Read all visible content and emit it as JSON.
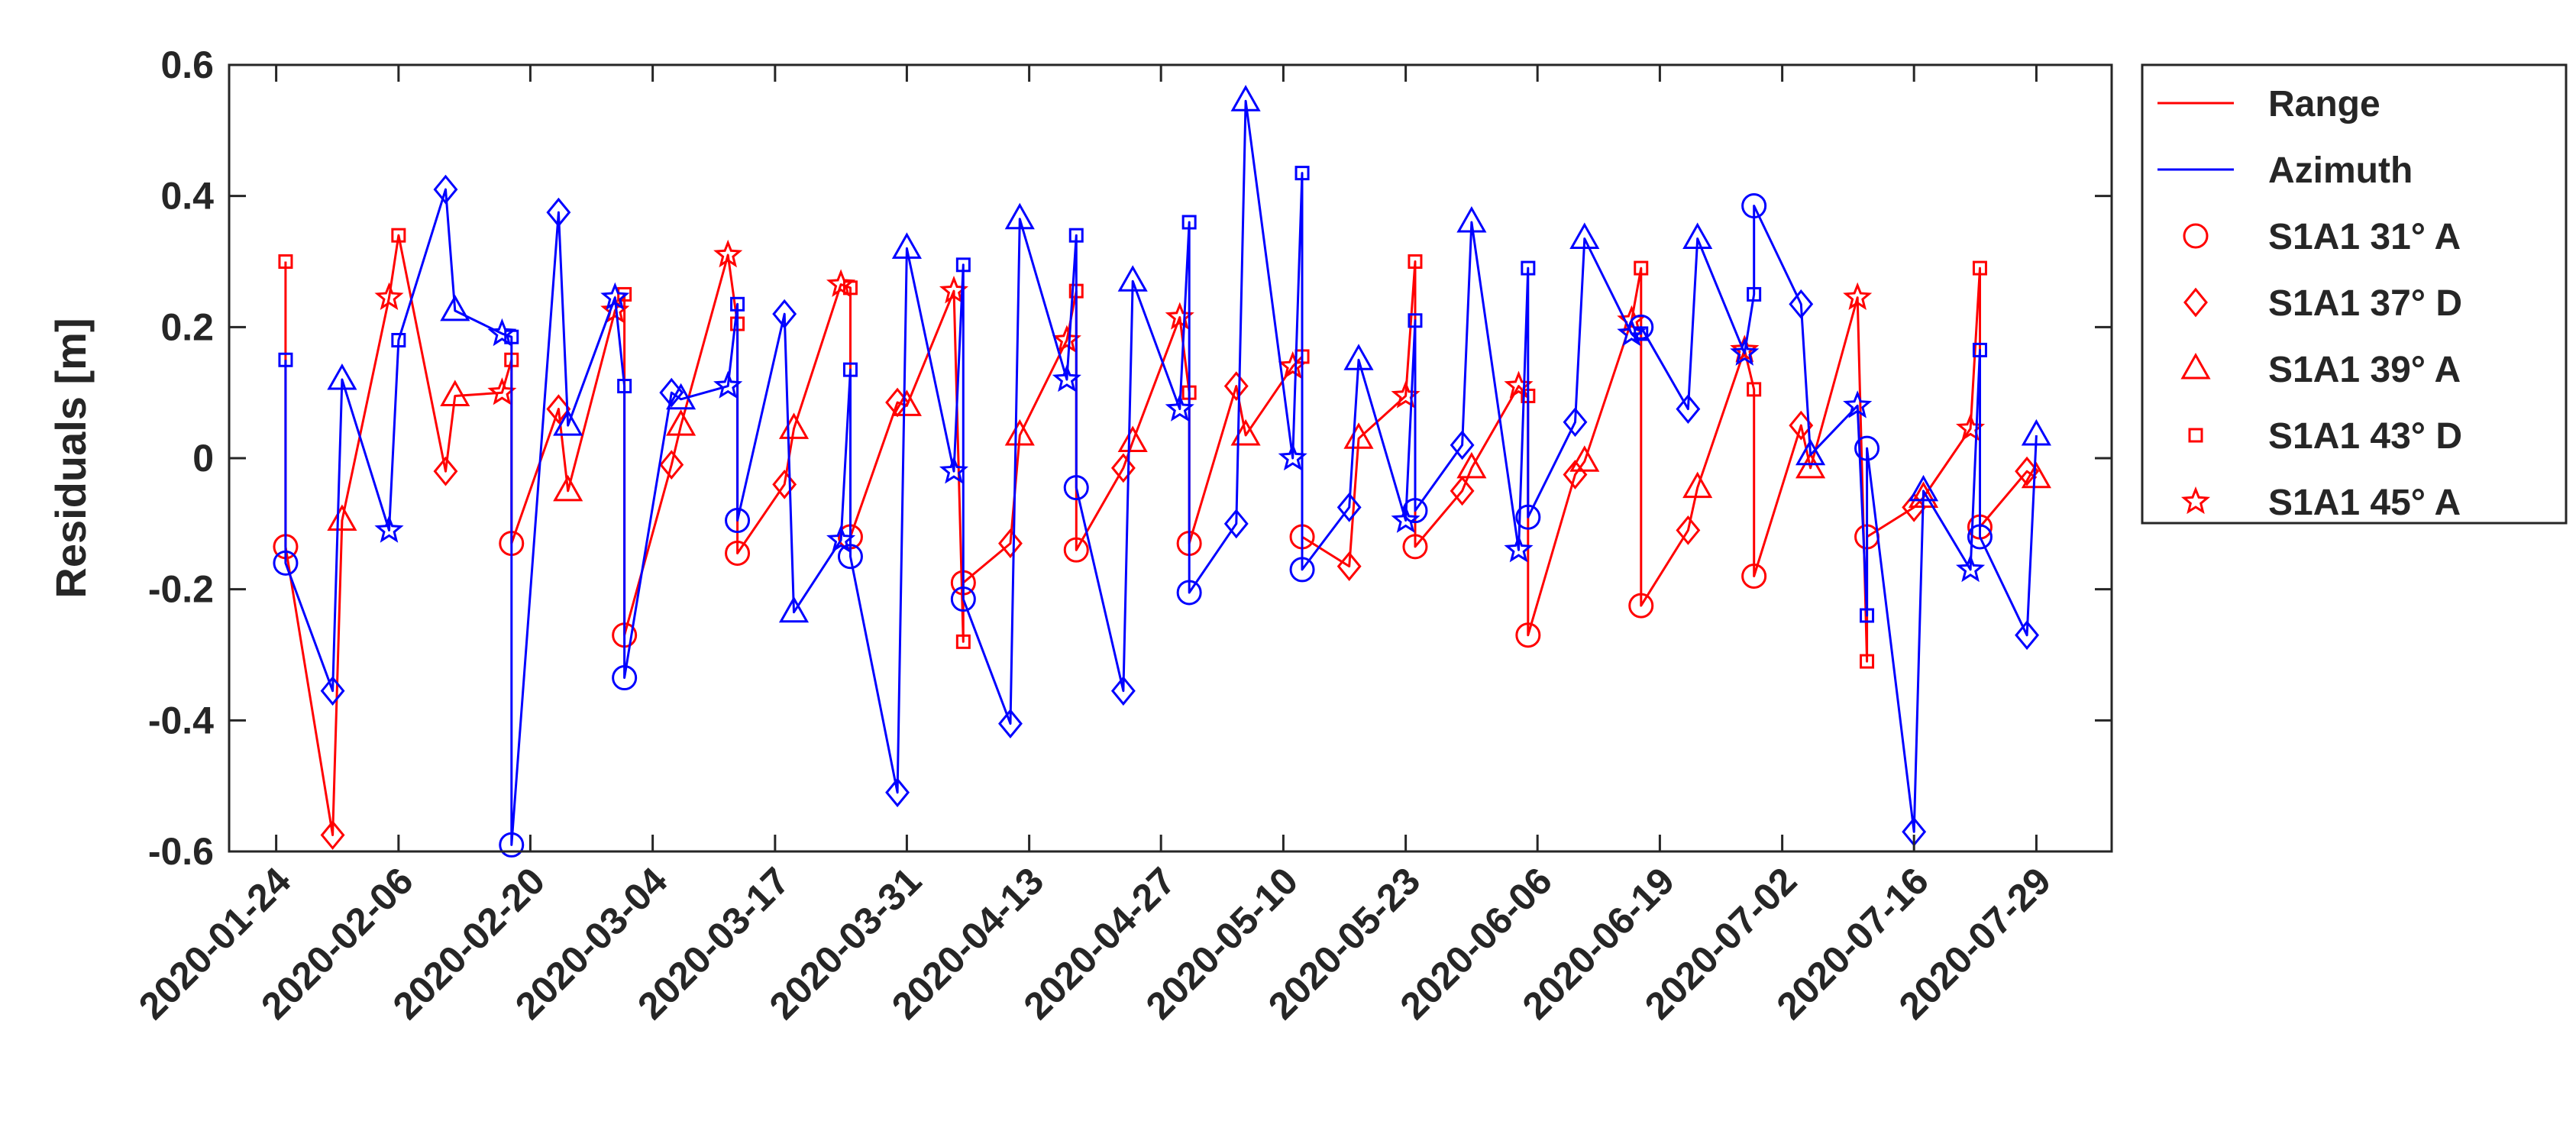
{
  "chart_data": {
    "type": "line",
    "ylabel": "Residuals [m]",
    "xlabel": "",
    "ylim": [
      -0.6,
      0.6
    ],
    "yticks": [
      "0.6",
      "0.4",
      "0.2",
      "0",
      "-0.2",
      "-0.4",
      "-0.6"
    ],
    "xlim": [
      "2020-01-19",
      "2020-08-06"
    ],
    "xticks": [
      "2020-01-24",
      "2020-02-06",
      "2020-02-20",
      "2020-03-04",
      "2020-03-17",
      "2020-03-31",
      "2020-04-13",
      "2020-04-27",
      "2020-05-10",
      "2020-05-23",
      "2020-06-06",
      "2020-06-19",
      "2020-07-02",
      "2020-07-16",
      "2020-07-29"
    ],
    "grid": false,
    "legend_position": "outside-right",
    "legend": {
      "lines": [
        {
          "name": "Range",
          "color": "#ff0000"
        },
        {
          "name": "Azimuth",
          "color": "#0000ff"
        }
      ],
      "markers": [
        {
          "name": "S1A1  31° A",
          "marker": "circle"
        },
        {
          "name": "S1A1  37° D",
          "marker": "diamond"
        },
        {
          "name": "S1A1  39° A",
          "marker": "triangle"
        },
        {
          "name": "S1A1  43° D",
          "marker": "square"
        },
        {
          "name": "S1A1  45° A",
          "marker": "star"
        }
      ]
    },
    "series": [
      {
        "name": "Range",
        "color": "#ff0000",
        "points": [
          {
            "x": "2020-01-25",
            "y": 0.3,
            "marker": "square"
          },
          {
            "x": "2020-01-25",
            "y": -0.135,
            "marker": "circle"
          },
          {
            "x": "2020-01-30",
            "y": -0.575,
            "marker": "diamond"
          },
          {
            "x": "2020-01-31",
            "y": -0.095,
            "marker": "triangle"
          },
          {
            "x": "2020-02-05",
            "y": 0.245,
            "marker": "star"
          },
          {
            "x": "2020-02-06",
            "y": 0.34,
            "marker": "square"
          },
          {
            "x": "2020-02-11",
            "y": -0.02,
            "marker": "diamond"
          },
          {
            "x": "2020-02-12",
            "y": 0.095,
            "marker": "triangle"
          },
          {
            "x": "2020-02-17",
            "y": 0.1,
            "marker": "star"
          },
          {
            "x": "2020-02-18",
            "y": 0.15,
            "marker": "square"
          },
          {
            "x": "2020-02-18",
            "y": -0.13,
            "marker": "circle"
          },
          {
            "x": "2020-02-23",
            "y": 0.075,
            "marker": "diamond"
          },
          {
            "x": "2020-02-24",
            "y": -0.05,
            "marker": "triangle"
          },
          {
            "x": "2020-02-29",
            "y": 0.225,
            "marker": "star"
          },
          {
            "x": "2020-03-01",
            "y": 0.25,
            "marker": "square"
          },
          {
            "x": "2020-03-01",
            "y": -0.27,
            "marker": "circle"
          },
          {
            "x": "2020-03-06",
            "y": -0.01,
            "marker": "diamond"
          },
          {
            "x": "2020-03-07",
            "y": 0.05,
            "marker": "triangle"
          },
          {
            "x": "2020-03-12",
            "y": 0.31,
            "marker": "star"
          },
          {
            "x": "2020-03-13",
            "y": 0.205,
            "marker": "square"
          },
          {
            "x": "2020-03-13",
            "y": -0.145,
            "marker": "circle"
          },
          {
            "x": "2020-03-18",
            "y": -0.04,
            "marker": "diamond"
          },
          {
            "x": "2020-03-19",
            "y": 0.045,
            "marker": "triangle"
          },
          {
            "x": "2020-03-24",
            "y": 0.265,
            "marker": "star"
          },
          {
            "x": "2020-03-25",
            "y": 0.26,
            "marker": "square"
          },
          {
            "x": "2020-03-25",
            "y": -0.12,
            "marker": "circle"
          },
          {
            "x": "2020-03-30",
            "y": 0.085,
            "marker": "diamond"
          },
          {
            "x": "2020-03-31",
            "y": 0.08,
            "marker": "triangle"
          },
          {
            "x": "2020-04-05",
            "y": 0.255,
            "marker": "star"
          },
          {
            "x": "2020-04-06",
            "y": -0.28,
            "marker": "square"
          },
          {
            "x": "2020-04-06",
            "y": -0.19,
            "marker": "circle"
          },
          {
            "x": "2020-04-11",
            "y": -0.13,
            "marker": "diamond"
          },
          {
            "x": "2020-04-12",
            "y": 0.035,
            "marker": "triangle"
          },
          {
            "x": "2020-04-17",
            "y": 0.18,
            "marker": "star"
          },
          {
            "x": "2020-04-18",
            "y": 0.255,
            "marker": "square"
          },
          {
            "x": "2020-04-18",
            "y": -0.14,
            "marker": "circle"
          },
          {
            "x": "2020-04-23",
            "y": -0.015,
            "marker": "diamond"
          },
          {
            "x": "2020-04-24",
            "y": 0.025,
            "marker": "triangle"
          },
          {
            "x": "2020-04-29",
            "y": 0.215,
            "marker": "star"
          },
          {
            "x": "2020-04-30",
            "y": 0.1,
            "marker": "square"
          },
          {
            "x": "2020-04-30",
            "y": -0.13,
            "marker": "circle"
          },
          {
            "x": "2020-05-05",
            "y": 0.11,
            "marker": "diamond"
          },
          {
            "x": "2020-05-06",
            "y": 0.035,
            "marker": "triangle"
          },
          {
            "x": "2020-05-11",
            "y": 0.14,
            "marker": "star"
          },
          {
            "x": "2020-05-12",
            "y": 0.155,
            "marker": "square"
          },
          {
            "x": "2020-05-12",
            "y": -0.12,
            "marker": "circle"
          },
          {
            "x": "2020-05-17",
            "y": -0.165,
            "marker": "diamond"
          },
          {
            "x": "2020-05-18",
            "y": 0.03,
            "marker": "triangle"
          },
          {
            "x": "2020-05-23",
            "y": 0.095,
            "marker": "star"
          },
          {
            "x": "2020-05-24",
            "y": 0.3,
            "marker": "square"
          },
          {
            "x": "2020-05-24",
            "y": -0.135,
            "marker": "circle"
          },
          {
            "x": "2020-05-29",
            "y": -0.05,
            "marker": "diamond"
          },
          {
            "x": "2020-05-30",
            "y": -0.015,
            "marker": "triangle"
          },
          {
            "x": "2020-06-04",
            "y": 0.11,
            "marker": "star"
          },
          {
            "x": "2020-06-05",
            "y": 0.095,
            "marker": "square"
          },
          {
            "x": "2020-06-05",
            "y": -0.27,
            "marker": "circle"
          },
          {
            "x": "2020-06-10",
            "y": -0.025,
            "marker": "diamond"
          },
          {
            "x": "2020-06-11",
            "y": -0.005,
            "marker": "triangle"
          },
          {
            "x": "2020-06-16",
            "y": 0.21,
            "marker": "star"
          },
          {
            "x": "2020-06-17",
            "y": 0.29,
            "marker": "square"
          },
          {
            "x": "2020-06-17",
            "y": -0.225,
            "marker": "circle"
          },
          {
            "x": "2020-06-22",
            "y": -0.11,
            "marker": "diamond"
          },
          {
            "x": "2020-06-23",
            "y": -0.045,
            "marker": "triangle"
          },
          {
            "x": "2020-06-28",
            "y": 0.165,
            "marker": "star"
          },
          {
            "x": "2020-06-29",
            "y": 0.105,
            "marker": "square"
          },
          {
            "x": "2020-06-29",
            "y": -0.18,
            "marker": "circle"
          },
          {
            "x": "2020-07-04",
            "y": 0.05,
            "marker": "diamond"
          },
          {
            "x": "2020-07-05",
            "y": -0.015,
            "marker": "triangle"
          },
          {
            "x": "2020-07-10",
            "y": 0.245,
            "marker": "star"
          },
          {
            "x": "2020-07-11",
            "y": -0.31,
            "marker": "square"
          },
          {
            "x": "2020-07-11",
            "y": -0.12,
            "marker": "circle"
          },
          {
            "x": "2020-07-16",
            "y": -0.075,
            "marker": "diamond"
          },
          {
            "x": "2020-07-17",
            "y": -0.06,
            "marker": "triangle"
          },
          {
            "x": "2020-07-22",
            "y": 0.045,
            "marker": "star"
          },
          {
            "x": "2020-07-23",
            "y": 0.29,
            "marker": "square"
          },
          {
            "x": "2020-07-23",
            "y": -0.105,
            "marker": "circle"
          },
          {
            "x": "2020-07-28",
            "y": -0.02,
            "marker": "diamond"
          },
          {
            "x": "2020-07-29",
            "y": -0.03,
            "marker": "triangle"
          }
        ]
      },
      {
        "name": "Azimuth",
        "color": "#0000ff",
        "points": [
          {
            "x": "2020-01-25",
            "y": 0.15,
            "marker": "square"
          },
          {
            "x": "2020-01-25",
            "y": -0.16,
            "marker": "circle"
          },
          {
            "x": "2020-01-30",
            "y": -0.355,
            "marker": "diamond"
          },
          {
            "x": "2020-01-31",
            "y": 0.12,
            "marker": "triangle"
          },
          {
            "x": "2020-02-05",
            "y": -0.11,
            "marker": "star"
          },
          {
            "x": "2020-02-06",
            "y": 0.18,
            "marker": "square"
          },
          {
            "x": "2020-02-11",
            "y": 0.41,
            "marker": "diamond"
          },
          {
            "x": "2020-02-12",
            "y": 0.225,
            "marker": "triangle"
          },
          {
            "x": "2020-02-17",
            "y": 0.19,
            "marker": "star"
          },
          {
            "x": "2020-02-18",
            "y": 0.185,
            "marker": "square"
          },
          {
            "x": "2020-02-18",
            "y": -0.59,
            "marker": "circle"
          },
          {
            "x": "2020-02-23",
            "y": 0.375,
            "marker": "diamond"
          },
          {
            "x": "2020-02-24",
            "y": 0.05,
            "marker": "triangle"
          },
          {
            "x": "2020-02-29",
            "y": 0.245,
            "marker": "star"
          },
          {
            "x": "2020-03-01",
            "y": 0.11,
            "marker": "square"
          },
          {
            "x": "2020-03-01",
            "y": -0.335,
            "marker": "circle"
          },
          {
            "x": "2020-03-06",
            "y": 0.1,
            "marker": "diamond"
          },
          {
            "x": "2020-03-07",
            "y": 0.09,
            "marker": "triangle"
          },
          {
            "x": "2020-03-12",
            "y": 0.11,
            "marker": "star"
          },
          {
            "x": "2020-03-13",
            "y": 0.235,
            "marker": "square"
          },
          {
            "x": "2020-03-13",
            "y": -0.095,
            "marker": "circle"
          },
          {
            "x": "2020-03-18",
            "y": 0.22,
            "marker": "diamond"
          },
          {
            "x": "2020-03-19",
            "y": -0.235,
            "marker": "triangle"
          },
          {
            "x": "2020-03-24",
            "y": -0.125,
            "marker": "star"
          },
          {
            "x": "2020-03-25",
            "y": 0.135,
            "marker": "square"
          },
          {
            "x": "2020-03-25",
            "y": -0.15,
            "marker": "circle"
          },
          {
            "x": "2020-03-30",
            "y": -0.51,
            "marker": "diamond"
          },
          {
            "x": "2020-03-31",
            "y": 0.32,
            "marker": "triangle"
          },
          {
            "x": "2020-04-05",
            "y": -0.02,
            "marker": "star"
          },
          {
            "x": "2020-04-06",
            "y": 0.295,
            "marker": "square"
          },
          {
            "x": "2020-04-06",
            "y": -0.215,
            "marker": "circle"
          },
          {
            "x": "2020-04-11",
            "y": -0.405,
            "marker": "diamond"
          },
          {
            "x": "2020-04-12",
            "y": 0.365,
            "marker": "triangle"
          },
          {
            "x": "2020-04-17",
            "y": 0.12,
            "marker": "star"
          },
          {
            "x": "2020-04-18",
            "y": 0.34,
            "marker": "square"
          },
          {
            "x": "2020-04-18",
            "y": -0.045,
            "marker": "circle"
          },
          {
            "x": "2020-04-23",
            "y": -0.355,
            "marker": "diamond"
          },
          {
            "x": "2020-04-24",
            "y": 0.27,
            "marker": "triangle"
          },
          {
            "x": "2020-04-29",
            "y": 0.075,
            "marker": "star"
          },
          {
            "x": "2020-04-30",
            "y": 0.36,
            "marker": "square"
          },
          {
            "x": "2020-04-30",
            "y": -0.205,
            "marker": "circle"
          },
          {
            "x": "2020-05-05",
            "y": -0.1,
            "marker": "diamond"
          },
          {
            "x": "2020-05-06",
            "y": 0.545,
            "marker": "triangle"
          },
          {
            "x": "2020-05-11",
            "y": 0.0,
            "marker": "star"
          },
          {
            "x": "2020-05-12",
            "y": 0.435,
            "marker": "square"
          },
          {
            "x": "2020-05-12",
            "y": -0.17,
            "marker": "circle"
          },
          {
            "x": "2020-05-17",
            "y": -0.075,
            "marker": "diamond"
          },
          {
            "x": "2020-05-18",
            "y": 0.15,
            "marker": "triangle"
          },
          {
            "x": "2020-05-23",
            "y": -0.095,
            "marker": "star"
          },
          {
            "x": "2020-05-24",
            "y": 0.21,
            "marker": "square"
          },
          {
            "x": "2020-05-24",
            "y": -0.08,
            "marker": "circle"
          },
          {
            "x": "2020-05-29",
            "y": 0.02,
            "marker": "diamond"
          },
          {
            "x": "2020-05-30",
            "y": 0.36,
            "marker": "triangle"
          },
          {
            "x": "2020-06-04",
            "y": -0.14,
            "marker": "star"
          },
          {
            "x": "2020-06-05",
            "y": 0.29,
            "marker": "square"
          },
          {
            "x": "2020-06-05",
            "y": -0.09,
            "marker": "circle"
          },
          {
            "x": "2020-06-10",
            "y": 0.055,
            "marker": "diamond"
          },
          {
            "x": "2020-06-11",
            "y": 0.335,
            "marker": "triangle"
          },
          {
            "x": "2020-06-16",
            "y": 0.19,
            "marker": "star"
          },
          {
            "x": "2020-06-17",
            "y": 0.19,
            "marker": "square"
          },
          {
            "x": "2020-06-17",
            "y": 0.2,
            "marker": "circle"
          },
          {
            "x": "2020-06-22",
            "y": 0.075,
            "marker": "diamond"
          },
          {
            "x": "2020-06-23",
            "y": 0.335,
            "marker": "triangle"
          },
          {
            "x": "2020-06-28",
            "y": 0.16,
            "marker": "star"
          },
          {
            "x": "2020-06-29",
            "y": 0.25,
            "marker": "square"
          },
          {
            "x": "2020-06-29",
            "y": 0.385,
            "marker": "circle"
          },
          {
            "x": "2020-07-04",
            "y": 0.235,
            "marker": "diamond"
          },
          {
            "x": "2020-07-05",
            "y": 0.005,
            "marker": "triangle"
          },
          {
            "x": "2020-07-10",
            "y": 0.08,
            "marker": "star"
          },
          {
            "x": "2020-07-11",
            "y": -0.24,
            "marker": "square"
          },
          {
            "x": "2020-07-11",
            "y": 0.015,
            "marker": "circle"
          },
          {
            "x": "2020-07-16",
            "y": -0.57,
            "marker": "diamond"
          },
          {
            "x": "2020-07-17",
            "y": -0.05,
            "marker": "triangle"
          },
          {
            "x": "2020-07-22",
            "y": -0.17,
            "marker": "star"
          },
          {
            "x": "2020-07-23",
            "y": 0.165,
            "marker": "square"
          },
          {
            "x": "2020-07-23",
            "y": -0.12,
            "marker": "circle"
          },
          {
            "x": "2020-07-28",
            "y": -0.27,
            "marker": "diamond"
          },
          {
            "x": "2020-07-29",
            "y": 0.035,
            "marker": "triangle"
          }
        ]
      }
    ]
  }
}
